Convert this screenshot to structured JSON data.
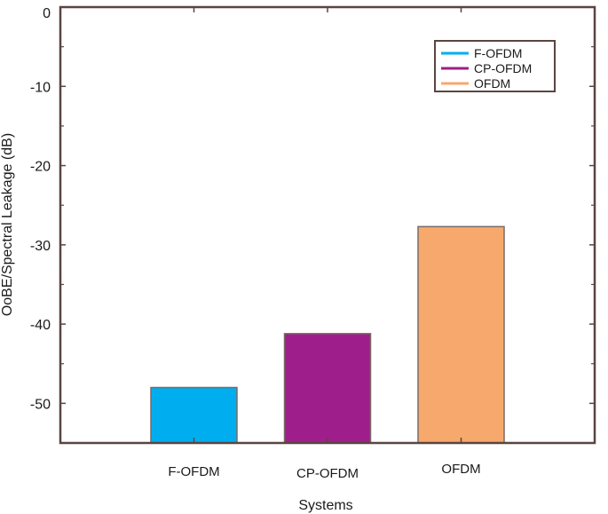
{
  "chart_data": {
    "type": "bar",
    "title": "",
    "xlabel": "Systems",
    "ylabel": "OoBE/Spectral Leakage (dB)",
    "categories": [
      "F-OFDM",
      "CP-OFDM",
      "OFDM"
    ],
    "values": [
      -48.0,
      -41.2,
      -27.7
    ],
    "colors": [
      "#00aeef",
      "#9e1f8b",
      "#f7a86c"
    ],
    "edge_color": "#7a6a66",
    "axis_color": "#5a4540",
    "ylim": [
      -55,
      0
    ],
    "yticks": [
      0,
      -10,
      -20,
      -30,
      -40,
      -50
    ],
    "ytick_labels": [
      "0",
      "-10",
      "-20",
      "-30",
      "-40",
      "-50"
    ],
    "grid": false,
    "legend": {
      "placement": "top-right",
      "entries": [
        {
          "label": "F-OFDM",
          "color": "#00aeef"
        },
        {
          "label": "CP-OFDM",
          "color": "#9e1f8b"
        },
        {
          "label": "OFDM",
          "color": "#f7a86c"
        }
      ]
    }
  }
}
